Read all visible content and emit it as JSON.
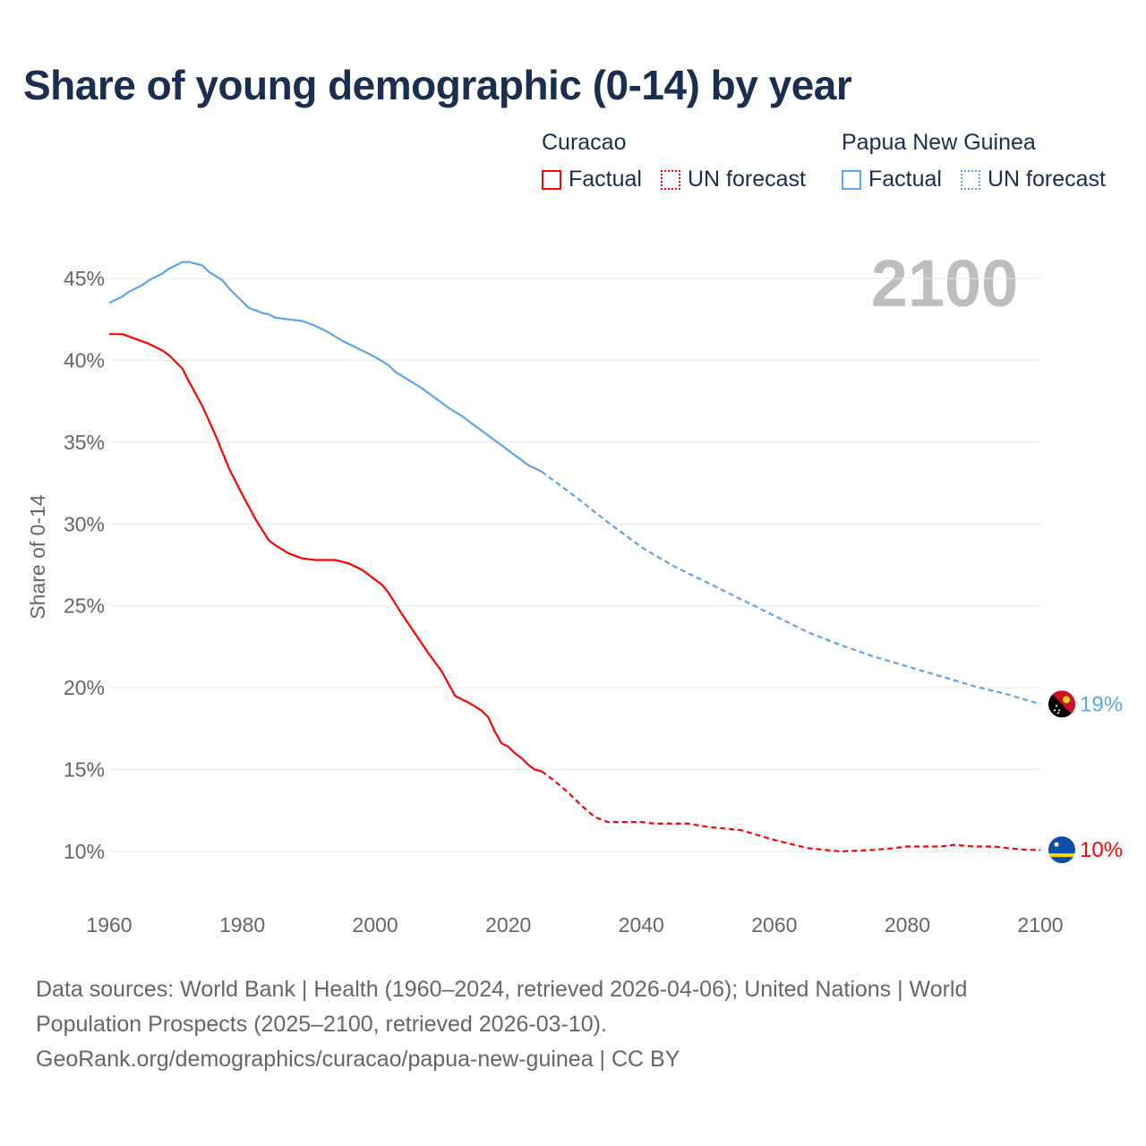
{
  "chart_data": {
    "type": "line",
    "title": "Share of young demographic (0-14) by year",
    "ylabel": "Share of 0-14",
    "xlabel": "",
    "xlim": [
      1960,
      2100
    ],
    "ylim": [
      7,
      47
    ],
    "x_ticks": [
      "1960",
      "1980",
      "2000",
      "2020",
      "2040",
      "2060",
      "2080",
      "2100"
    ],
    "y_ticks": [
      "10%",
      "15%",
      "20%",
      "25%",
      "30%",
      "35%",
      "40%",
      "45%"
    ],
    "y_tick_values": [
      10,
      15,
      20,
      25,
      30,
      35,
      40,
      45
    ],
    "x_tick_values": [
      1960,
      1980,
      2000,
      2020,
      2040,
      2060,
      2080,
      2100
    ],
    "grid": true,
    "year_label": "2100",
    "legend": {
      "position": "top-right",
      "groups": [
        {
          "country": "Curacao",
          "factual": "Factual",
          "forecast": "UN forecast",
          "color": "#ff0000"
        },
        {
          "country": "Papua New Guinea",
          "factual": "Factual",
          "forecast": "UN forecast",
          "color": "#5aa5ec"
        }
      ]
    },
    "series": [
      {
        "name": "Curacao",
        "color": "#ff0000",
        "end_label": "10%",
        "factual": [
          [
            1960,
            41.6
          ],
          [
            1962,
            41.6
          ],
          [
            1964,
            41.3
          ],
          [
            1966,
            41.0
          ],
          [
            1968,
            40.6
          ],
          [
            1969,
            40.3
          ],
          [
            1971,
            39.5
          ],
          [
            1972,
            38.7
          ],
          [
            1974,
            37.2
          ],
          [
            1976,
            35.4
          ],
          [
            1978,
            33.4
          ],
          [
            1980,
            31.8
          ],
          [
            1982,
            30.3
          ],
          [
            1984,
            29.0
          ],
          [
            1985,
            28.7
          ],
          [
            1987,
            28.2
          ],
          [
            1989,
            27.9
          ],
          [
            1991,
            27.8
          ],
          [
            1994,
            27.8
          ],
          [
            1996,
            27.6
          ],
          [
            1998,
            27.2
          ],
          [
            2000,
            26.6
          ],
          [
            2001,
            26.3
          ],
          [
            2002,
            25.8
          ],
          [
            2004,
            24.5
          ],
          [
            2006,
            23.3
          ],
          [
            2008,
            22.1
          ],
          [
            2010,
            21.0
          ],
          [
            2012,
            19.5
          ],
          [
            2014,
            19.1
          ],
          [
            2016,
            18.6
          ],
          [
            2017,
            18.2
          ],
          [
            2018,
            17.3
          ],
          [
            2019,
            16.6
          ],
          [
            2020,
            16.4
          ],
          [
            2021,
            16.0
          ],
          [
            2022,
            15.7
          ],
          [
            2023,
            15.3
          ],
          [
            2024,
            15.0
          ],
          [
            2025,
            14.9
          ]
        ],
        "forecast": [
          [
            2025,
            14.9
          ],
          [
            2027,
            14.3
          ],
          [
            2029,
            13.6
          ],
          [
            2031,
            12.8
          ],
          [
            2033,
            12.1
          ],
          [
            2035,
            11.8
          ],
          [
            2040,
            11.8
          ],
          [
            2042,
            11.7
          ],
          [
            2047,
            11.7
          ],
          [
            2050,
            11.5
          ],
          [
            2055,
            11.3
          ],
          [
            2060,
            10.7
          ],
          [
            2065,
            10.2
          ],
          [
            2070,
            10.0
          ],
          [
            2075,
            10.1
          ],
          [
            2078,
            10.2
          ],
          [
            2080,
            10.3
          ],
          [
            2085,
            10.3
          ],
          [
            2087,
            10.4
          ],
          [
            2090,
            10.3
          ],
          [
            2093,
            10.3
          ],
          [
            2095,
            10.2
          ],
          [
            2098,
            10.1
          ],
          [
            2100,
            10.1
          ]
        ]
      },
      {
        "name": "Papua New Guinea",
        "color": "#5aa5ec",
        "end_label": "19%",
        "factual": [
          [
            1960,
            43.5
          ],
          [
            1962,
            43.9
          ],
          [
            1963,
            44.2
          ],
          [
            1965,
            44.6
          ],
          [
            1966,
            44.9
          ],
          [
            1968,
            45.3
          ],
          [
            1969,
            45.6
          ],
          [
            1971,
            46.0
          ],
          [
            1972,
            46.0
          ],
          [
            1974,
            45.8
          ],
          [
            1975,
            45.4
          ],
          [
            1977,
            44.9
          ],
          [
            1978,
            44.4
          ],
          [
            1980,
            43.6
          ],
          [
            1981,
            43.2
          ],
          [
            1983,
            42.9
          ],
          [
            1984,
            42.8
          ],
          [
            1985,
            42.6
          ],
          [
            1987,
            42.5
          ],
          [
            1989,
            42.4
          ],
          [
            1991,
            42.1
          ],
          [
            1993,
            41.7
          ],
          [
            1995,
            41.2
          ],
          [
            1997,
            40.8
          ],
          [
            2000,
            40.2
          ],
          [
            2002,
            39.7
          ],
          [
            2003,
            39.3
          ],
          [
            2005,
            38.8
          ],
          [
            2007,
            38.3
          ],
          [
            2009,
            37.7
          ],
          [
            2011,
            37.1
          ],
          [
            2013,
            36.6
          ],
          [
            2015,
            36.0
          ],
          [
            2017,
            35.4
          ],
          [
            2019,
            34.8
          ],
          [
            2021,
            34.2
          ],
          [
            2023,
            33.6
          ],
          [
            2025,
            33.2
          ]
        ],
        "forecast": [
          [
            2025,
            33.2
          ],
          [
            2030,
            31.7
          ],
          [
            2035,
            30.1
          ],
          [
            2038,
            29.2
          ],
          [
            2040,
            28.6
          ],
          [
            2042,
            28.1
          ],
          [
            2045,
            27.4
          ],
          [
            2050,
            26.4
          ],
          [
            2055,
            25.4
          ],
          [
            2060,
            24.4
          ],
          [
            2065,
            23.4
          ],
          [
            2070,
            22.6
          ],
          [
            2075,
            21.9
          ],
          [
            2080,
            21.3
          ],
          [
            2085,
            20.7
          ],
          [
            2090,
            20.1
          ],
          [
            2095,
            19.6
          ],
          [
            2100,
            19.0
          ]
        ]
      }
    ]
  },
  "footer": {
    "line1": "Data sources: World Bank | Health (1960–2024, retrieved 2026-04-06); United Nations | World",
    "line2": "Population Prospects (2025–2100, retrieved 2026-03-10).",
    "line3": "GeoRank.org/demographics/curacao/papua-new-guinea | CC BY"
  }
}
